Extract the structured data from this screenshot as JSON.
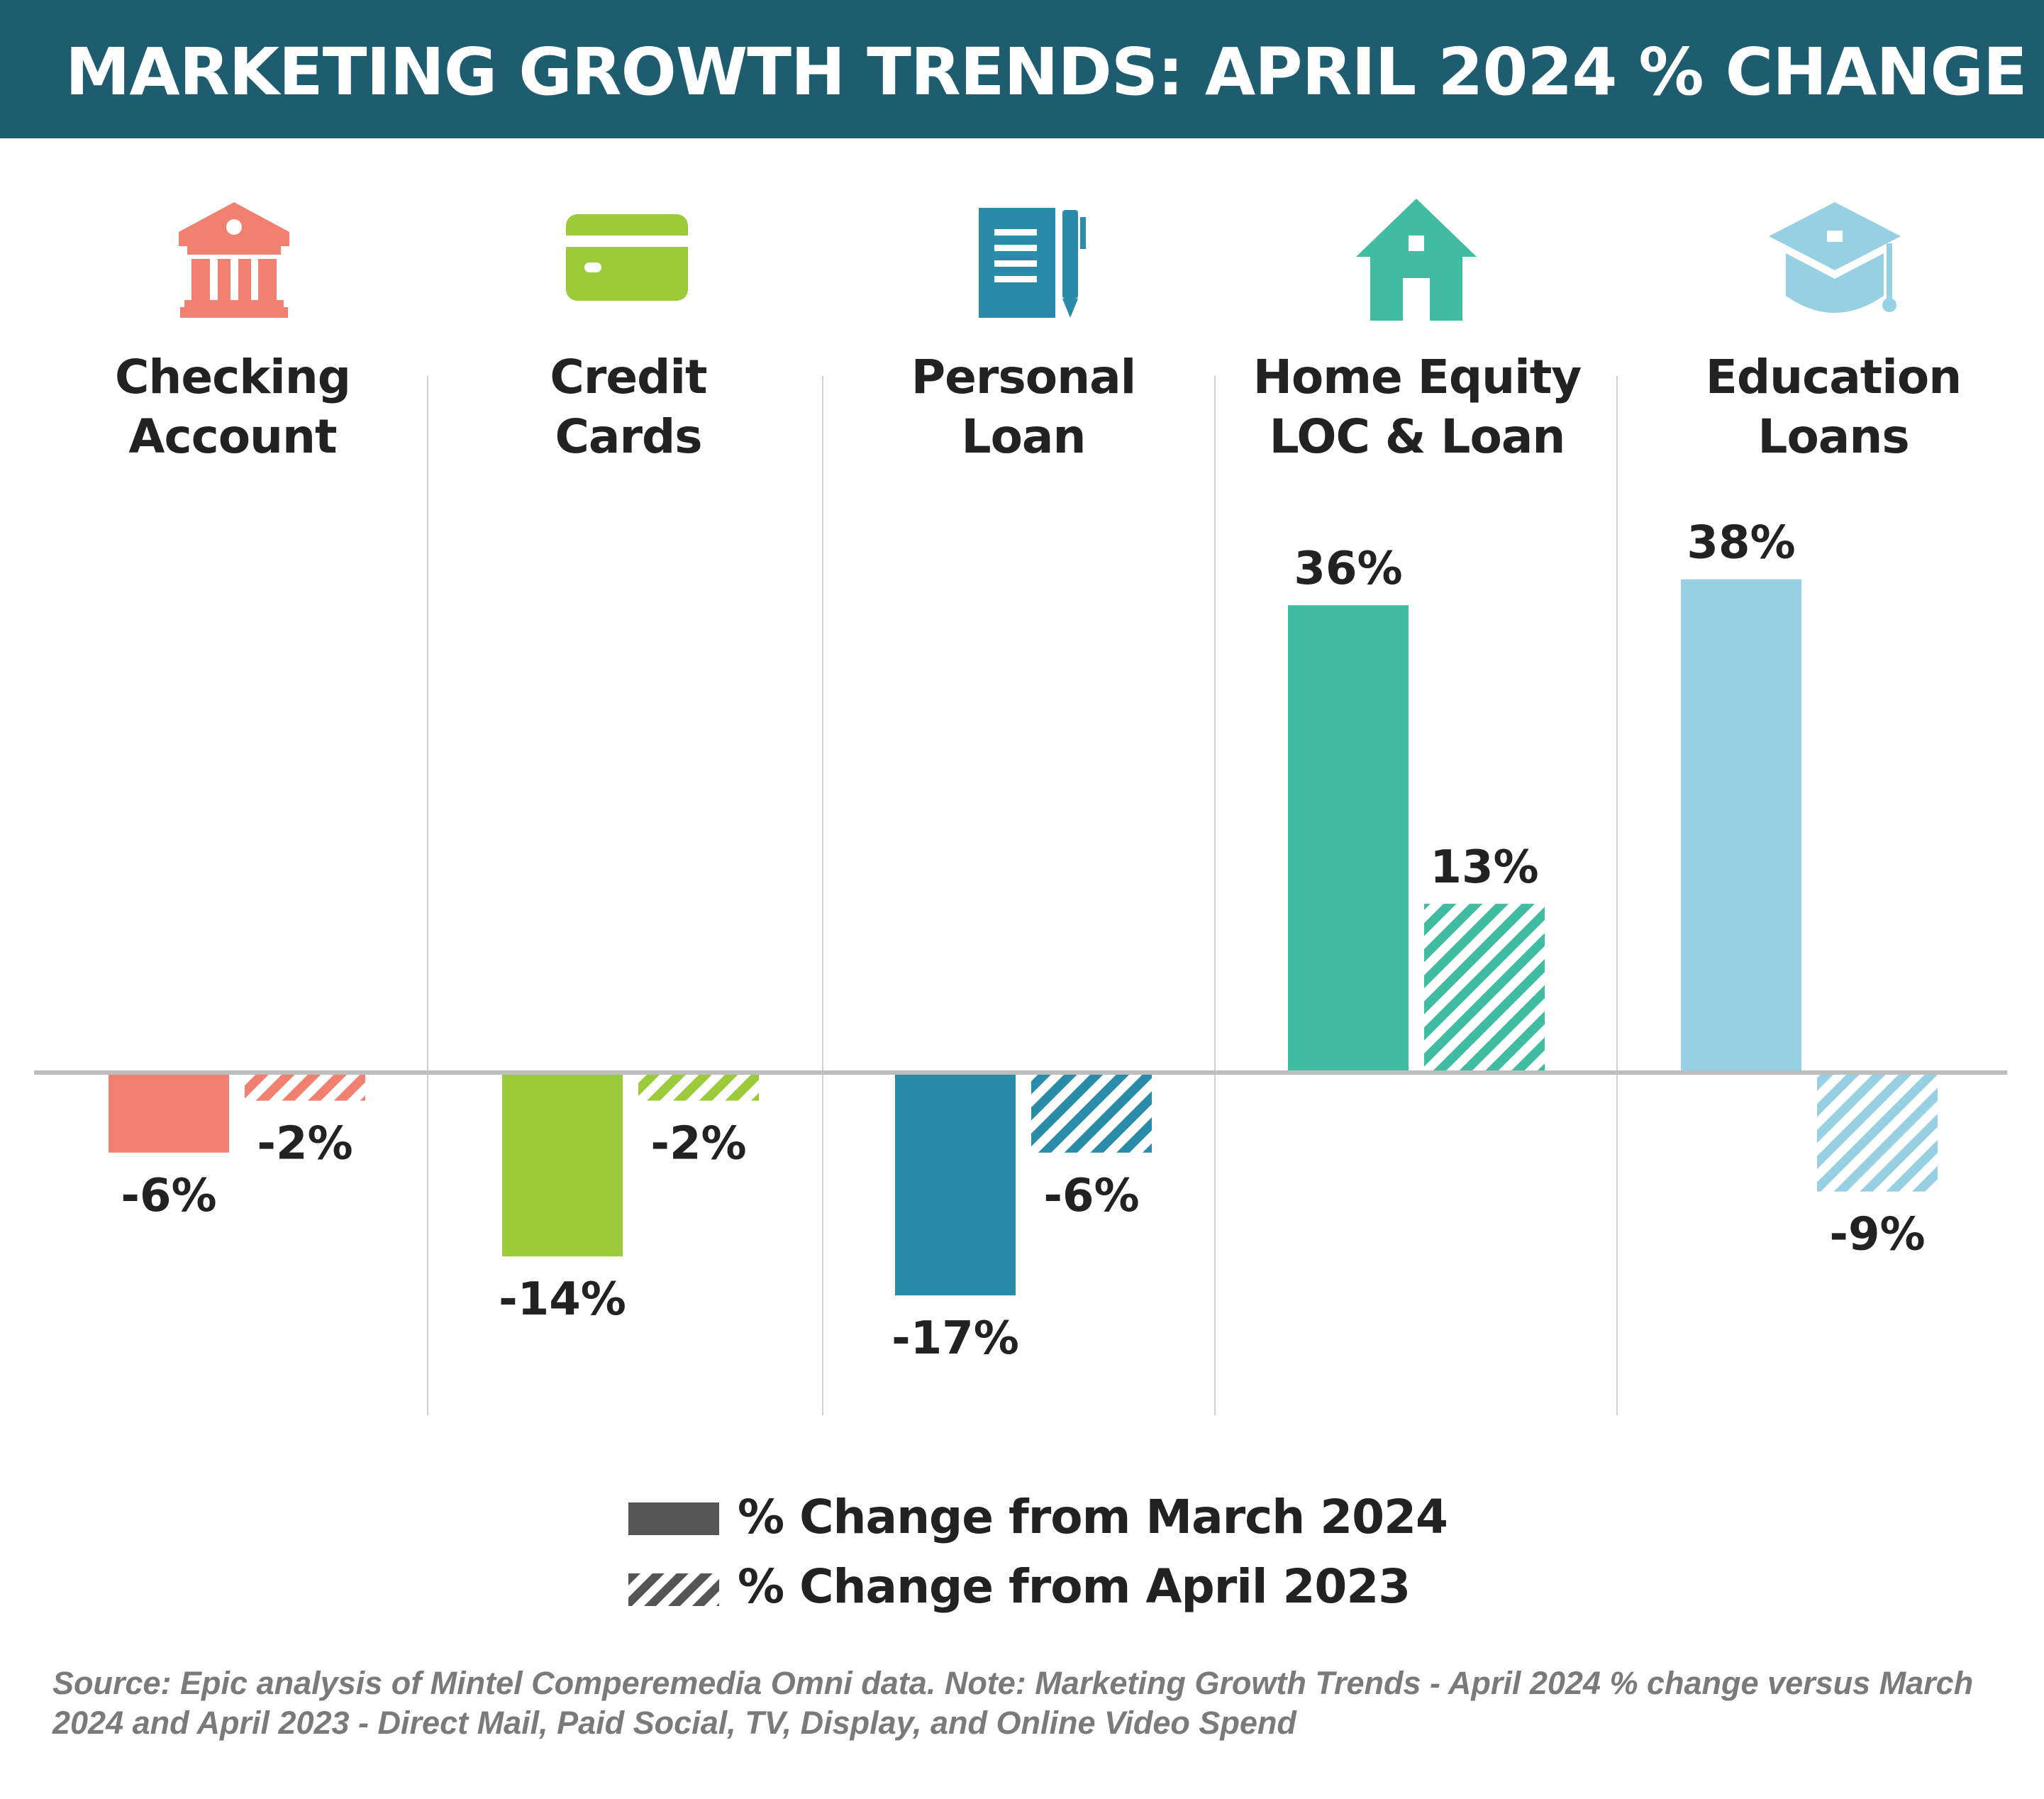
{
  "header": {
    "title": "MARKETING GROWTH TRENDS: APRIL 2024 % CHANGE"
  },
  "categories": [
    {
      "label_line1": "Checking",
      "label_line2": "Account",
      "icon": "bank-icon",
      "color": "#f18070"
    },
    {
      "label_line1": "Credit",
      "label_line2": "Cards",
      "icon": "credit-card-icon",
      "color": "#9bcb3b"
    },
    {
      "label_line1": "Personal",
      "label_line2": "Loan",
      "icon": "document-pen-icon",
      "color": "#2a8ca8"
    },
    {
      "label_line1": "Home Equity",
      "label_line2": "LOC & Loan",
      "icon": "house-icon",
      "color": "#40bda0"
    },
    {
      "label_line1": "Education",
      "label_line2": "Loans",
      "icon": "graduation-cap-icon",
      "color": "#97d0e2"
    }
  ],
  "legend": {
    "solid_label": "% Change from March 2024",
    "hatched_label": "% Change from April 2023"
  },
  "source": "Source: Epic analysis of Mintel Comperemedia Omni data. Note: Marketing Growth Trends - April 2024 % change versus March 2024 and April 2023 - Direct Mail, Paid Social, TV, Display, and Online Video Spend",
  "chart_data": {
    "type": "bar",
    "title": "MARKETING GROWTH TRENDS: APRIL 2024 % CHANGE",
    "categories": [
      "Checking Account",
      "Credit Cards",
      "Personal Loan",
      "Home Equity LOC & Loan",
      "Education Loans"
    ],
    "series": [
      {
        "name": "% Change from March 2024",
        "style": "solid",
        "values": [
          -6,
          -14,
          -17,
          36,
          38
        ],
        "labels": [
          "-6%",
          "-14%",
          "-17%",
          "36%",
          "38%"
        ]
      },
      {
        "name": "% Change from April 2023",
        "style": "hatched",
        "values": [
          -2,
          -2,
          -6,
          13,
          -9
        ],
        "labels": [
          "-2%",
          "-2%",
          "-6%",
          "13%",
          "-9%"
        ]
      }
    ],
    "colors": [
      "#f18070",
      "#9bcb3b",
      "#2a8ca8",
      "#40bda0",
      "#97d0e2"
    ],
    "ylim": [
      -20,
      40
    ],
    "grid": false,
    "legend_position": "bottom-center",
    "xlabel": "",
    "ylabel": ""
  }
}
